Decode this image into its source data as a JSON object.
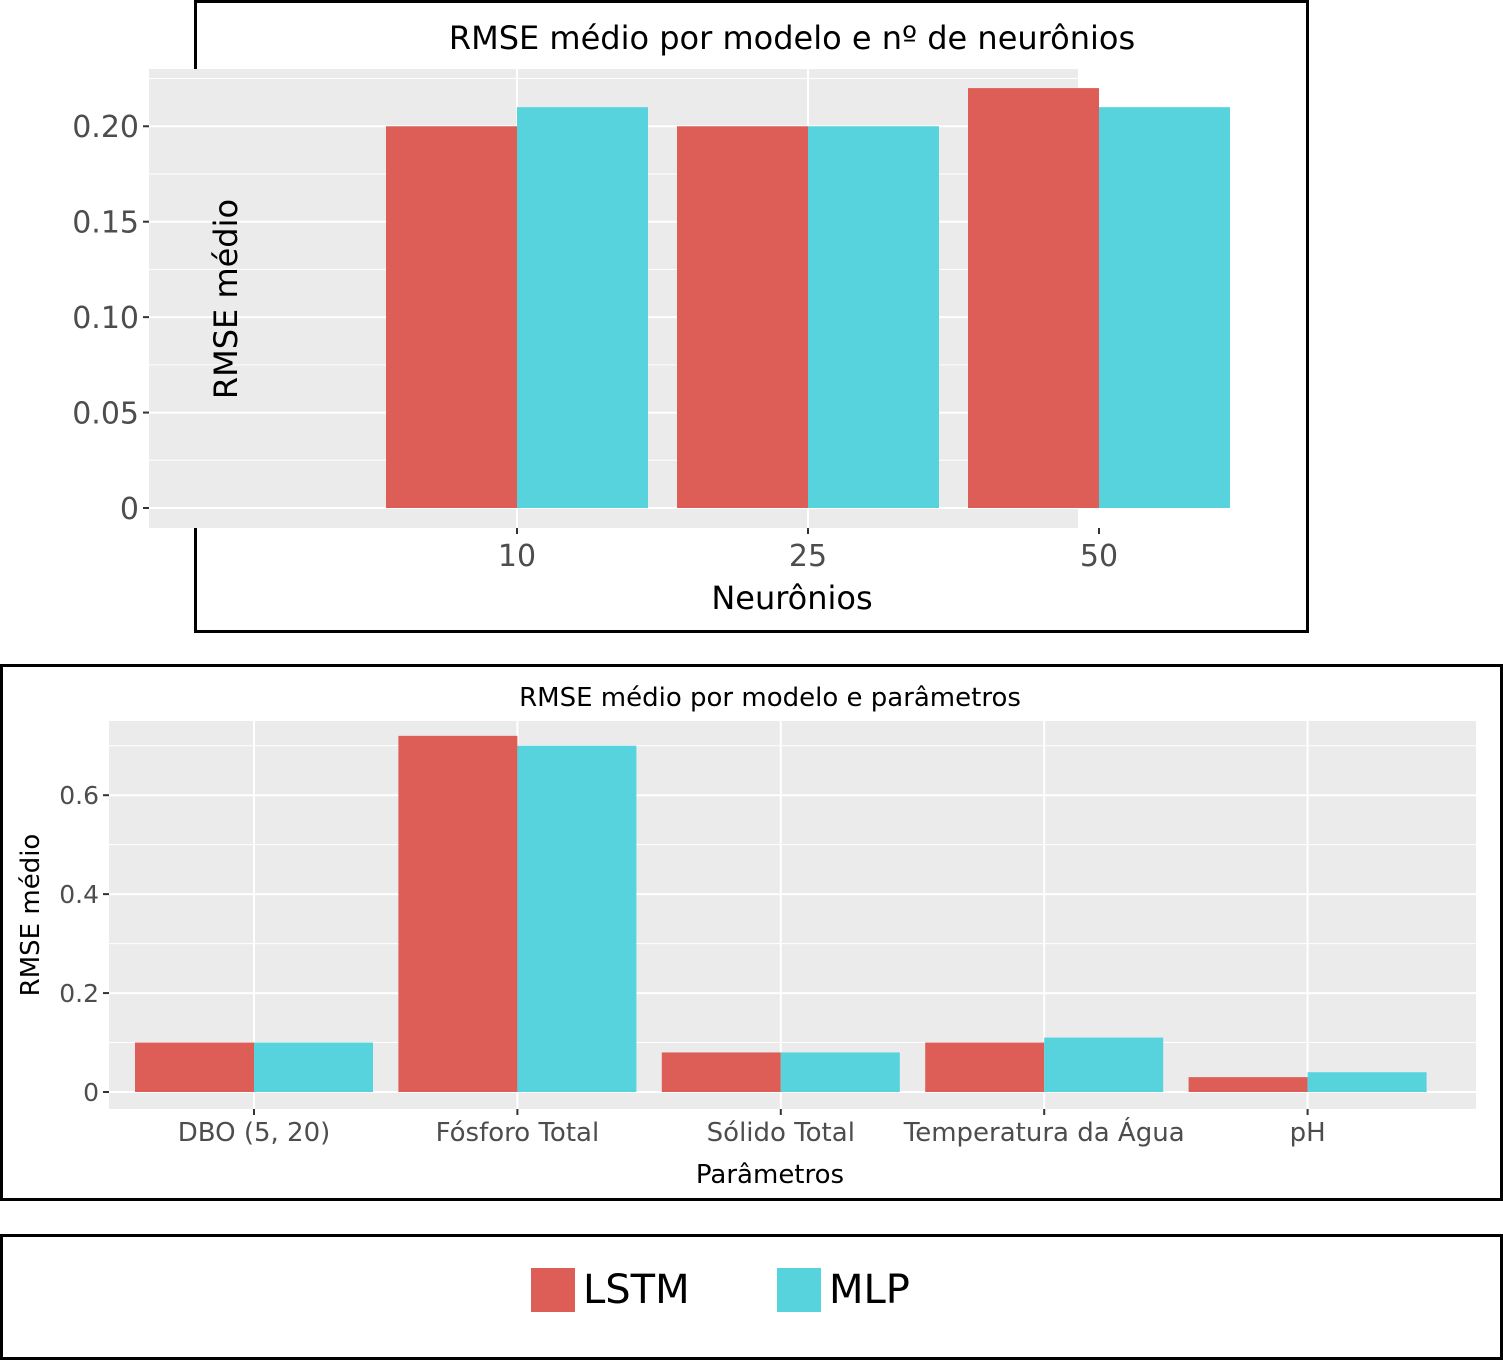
{
  "colors": {
    "LSTM": "#dc5e57",
    "MLP": "#56d3dc",
    "panel": "#ebebeb",
    "grid": "#ffffff",
    "tick_text": "#4d4d4d"
  },
  "legend": {
    "items": [
      {
        "label": "LSTM",
        "color": "#dc5e57"
      },
      {
        "label": "MLP",
        "color": "#56d3dc"
      }
    ]
  },
  "chart_data": [
    {
      "type": "bar",
      "title": "RMSE médio por modelo e nº de neurônios",
      "xlabel": "Neurônios",
      "ylabel": "RMSE médio",
      "categories": [
        "10",
        "25",
        "50"
      ],
      "series": [
        {
          "name": "LSTM",
          "values": [
            0.2,
            0.2,
            0.22
          ]
        },
        {
          "name": "MLP",
          "values": [
            0.21,
            0.2,
            0.21
          ]
        }
      ],
      "ylim": [
        0,
        0.23
      ],
      "yticks": [
        0,
        0.05,
        0.1,
        0.15,
        0.2
      ],
      "ytick_labels": [
        "0",
        "0.05",
        "0.10",
        "0.15",
        "0.20"
      ],
      "grid": true,
      "legend_position": "bottom"
    },
    {
      "type": "bar",
      "title": "RMSE médio por modelo e parâmetros",
      "xlabel": "Parâmetros",
      "ylabel": "RMSE médio",
      "categories": [
        "DBO (5, 20)",
        "Fósforo Total",
        "Sólido Total",
        "Temperatura da Água",
        "pH"
      ],
      "series": [
        {
          "name": "LSTM",
          "values": [
            0.1,
            0.72,
            0.08,
            0.1,
            0.03
          ]
        },
        {
          "name": "MLP",
          "values": [
            0.1,
            0.7,
            0.08,
            0.11,
            0.04
          ]
        }
      ],
      "ylim": [
        0,
        0.75
      ],
      "yticks": [
        0,
        0.2,
        0.4,
        0.6
      ],
      "ytick_labels": [
        "0",
        "0.2",
        "0.4",
        "0.6"
      ],
      "grid": true,
      "legend_position": "bottom"
    }
  ]
}
